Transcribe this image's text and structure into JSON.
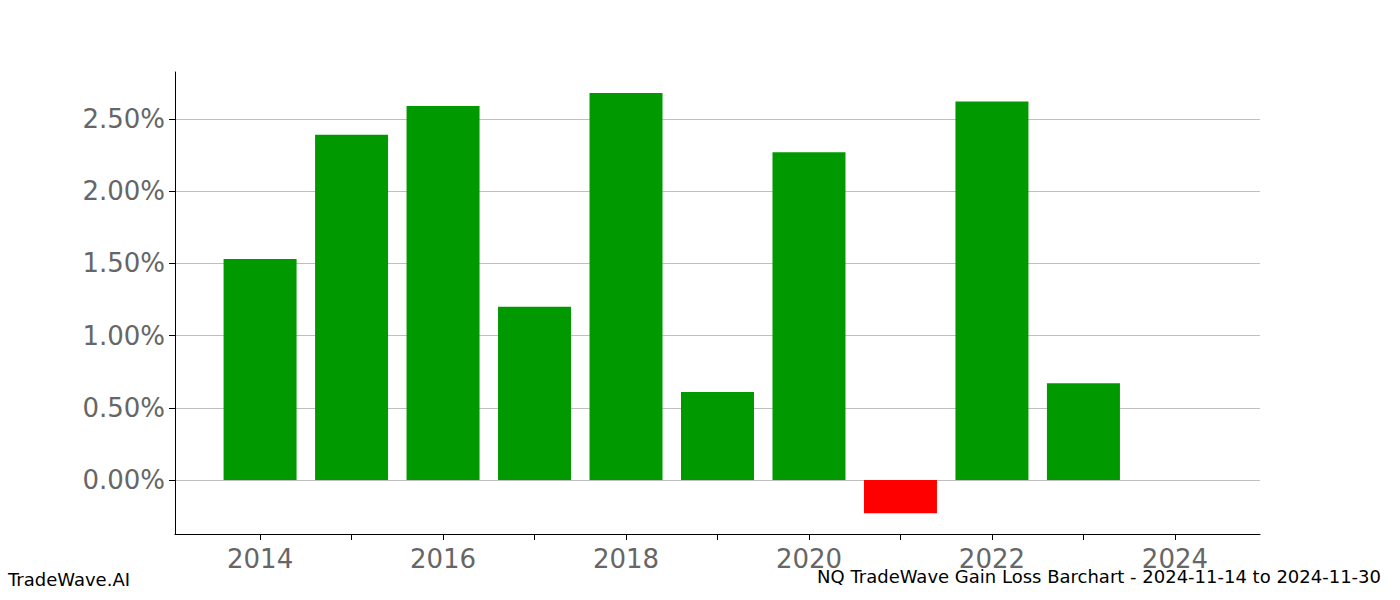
{
  "chart_data": {
    "type": "bar",
    "title": "NQ TradeWave Gain Loss Barchart - 2024-11-14 to 2024-11-30",
    "annotations": [
      "TradeWave.AI"
    ],
    "x": [
      2014,
      2015,
      2016,
      2017,
      2018,
      2019,
      2020,
      2021,
      2022,
      2023
    ],
    "values": [
      1.53,
      2.39,
      2.59,
      1.2,
      2.68,
      0.61,
      2.27,
      -0.23,
      2.62,
      0.67
    ],
    "colors": [
      "#009900",
      "#009900",
      "#009900",
      "#009900",
      "#009900",
      "#009900",
      "#009900",
      "#ff0000",
      "#009900",
      "#009900"
    ],
    "xlim": [
      2013.07,
      2024.93
    ],
    "xticks": [
      2014,
      2016,
      2018,
      2020,
      2022,
      2024
    ],
    "ylim": [
      -0.374,
      2.825
    ],
    "yticks": [
      {
        "value": 0,
        "label": "0.00%"
      },
      {
        "value": 0.5,
        "label": "0.50%"
      },
      {
        "value": 1,
        "label": "1.00%"
      },
      {
        "value": 1.5,
        "label": "1.50%"
      },
      {
        "value": 2,
        "label": "2.00%"
      },
      {
        "value": 2.5,
        "label": "2.50%"
      }
    ],
    "grid": true
  }
}
